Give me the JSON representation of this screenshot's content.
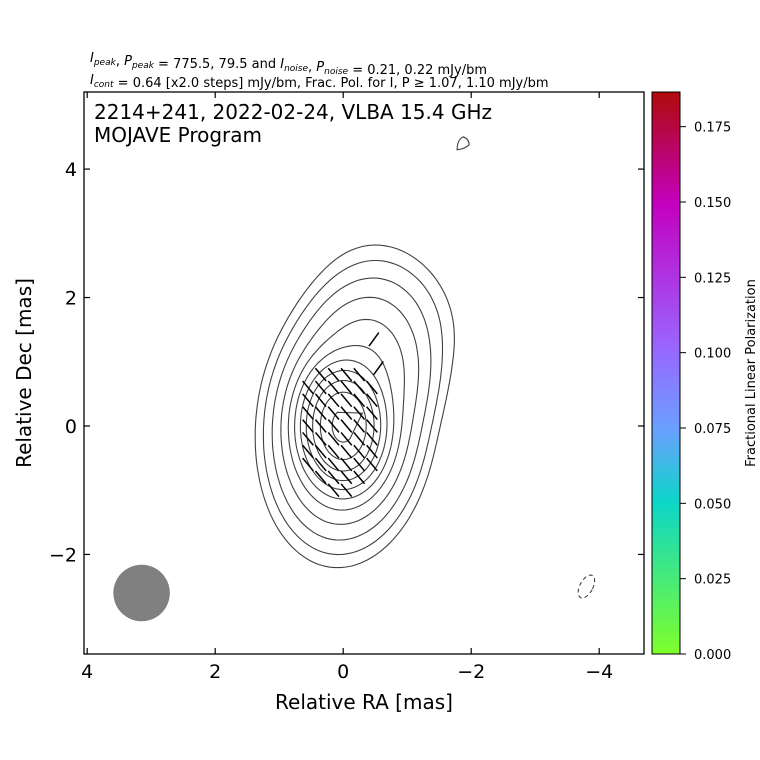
{
  "header": {
    "line1": "Ipeak, Ppeak = 775.5, 79.5 and Inoise, Pnoise = 0.21, 0.22 mJy/bm",
    "line2": "Icont = 0.64 [x2.0 steps] mJy/bm, Frac. Pol. for I, P ≥ 1.07, 1.10 mJy/bm"
  },
  "chart_data": {
    "type": "heatmap",
    "title_lines": [
      "2214+241, 2022-02-24, VLBA 15.4 GHz",
      "MOJAVE Program"
    ],
    "xlabel": "Relative RA [mas]",
    "ylabel": "Relative Dec [mas]",
    "xlim": [
      4.05,
      -4.7
    ],
    "ylim": [
      -3.55,
      5.2
    ],
    "xticks": [
      4,
      2,
      0,
      -2,
      -4
    ],
    "xtick_labels": [
      "4",
      "2",
      "0",
      "−2",
      "−4"
    ],
    "yticks": [
      -2,
      0,
      2,
      4
    ],
    "ytick_labels": [
      "−2",
      "0",
      "2",
      "4"
    ],
    "colorbar": {
      "label": "Fractional Linear Polarization",
      "range": [
        0.0,
        0.1865
      ],
      "ticks": [
        0.0,
        0.025,
        0.05,
        0.075,
        0.1,
        0.125,
        0.15,
        0.175
      ],
      "tick_labels": [
        "0.000",
        "0.025",
        "0.050",
        "0.075",
        "0.100",
        "0.125",
        "0.150",
        "0.175"
      ],
      "colors": [
        "#7fff2a",
        "#0dd6c8",
        "#6aa0ff",
        "#9a64ff",
        "#c400c0",
        "#b00a0a"
      ]
    },
    "beam": {
      "x": 3.15,
      "y": -2.6,
      "major_mas": 0.88,
      "minor_mas": 0.56,
      "pa_deg": 6
    },
    "contours": {
      "base_mJy": 0.64,
      "step_factor": 2.0,
      "levels": 11,
      "core": {
        "x": 0.0,
        "y": 0.0
      },
      "jet_knot": {
        "x": -0.5,
        "y": 1.1
      },
      "isolated_positive": {
        "x": -1.9,
        "y": 4.4
      },
      "negative": {
        "x": -3.8,
        "y": -2.5
      }
    },
    "polarization": {
      "core_center": {
        "x": 0.05,
        "y": -0.05
      },
      "knot_center": {
        "x": -0.5,
        "y": 1.25
      },
      "vector_angle_deg": 40
    }
  }
}
